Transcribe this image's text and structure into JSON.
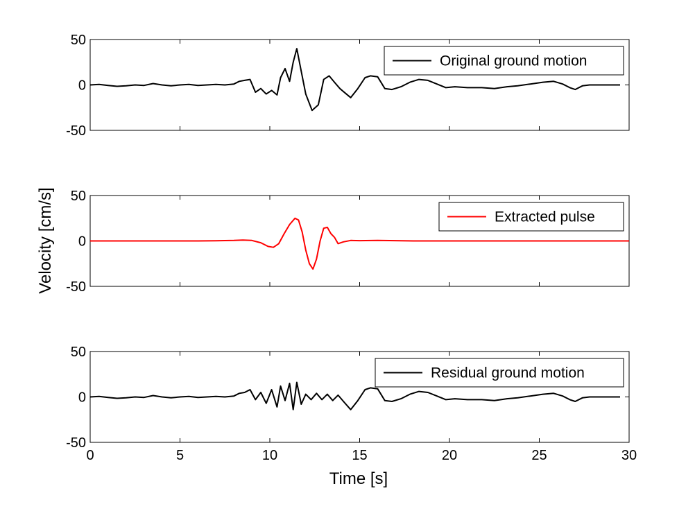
{
  "chart_data": {
    "type": "line",
    "xlabel": "Time [s]",
    "ylabel": "Velocity [cm/s]",
    "xlim": [
      0,
      30
    ],
    "ylim": [
      -50,
      50
    ],
    "xticks": [
      0,
      5,
      10,
      15,
      20,
      25,
      30
    ],
    "yticks": [
      50,
      0,
      -50
    ],
    "grid": false,
    "panels": [
      {
        "legend": "Original ground motion",
        "legend_position": "top-right",
        "color": "#000000",
        "x": [
          0.0,
          0.5,
          1.0,
          1.5,
          2.0,
          2.5,
          3.0,
          3.5,
          4.0,
          4.5,
          5.0,
          5.5,
          6.0,
          6.5,
          7.0,
          7.5,
          8.0,
          8.3,
          8.6,
          8.9,
          9.2,
          9.5,
          9.8,
          10.1,
          10.4,
          10.6,
          10.85,
          11.1,
          11.3,
          11.5,
          11.75,
          12.0,
          12.35,
          12.7,
          13.0,
          13.3,
          13.6,
          13.9,
          14.2,
          14.5,
          14.9,
          15.3,
          15.6,
          16.0,
          16.4,
          16.8,
          17.3,
          17.8,
          18.3,
          18.8,
          19.3,
          19.8,
          20.3,
          21.0,
          21.8,
          22.5,
          23.2,
          23.8,
          24.5,
          25.2,
          25.8,
          26.3,
          26.7,
          27.0,
          27.4,
          27.8,
          28.5,
          29.5
        ],
        "y": [
          0,
          0.5,
          -0.5,
          -1.5,
          -1,
          0,
          -0.5,
          1.5,
          0,
          -1,
          0,
          0.5,
          -0.5,
          0,
          0.5,
          0,
          1,
          4,
          5,
          6,
          -8,
          -4,
          -10,
          -6,
          -11,
          8,
          18,
          4,
          25,
          40,
          15,
          -10,
          -28,
          -22,
          6,
          10,
          3,
          -4,
          -9,
          -14,
          -4,
          8,
          10,
          9,
          -4,
          -5,
          -2,
          3,
          6,
          5,
          1,
          -3,
          -2,
          -3,
          -3,
          -4,
          -2,
          -1,
          1,
          3,
          4,
          1,
          -3,
          -5,
          -1,
          0,
          0,
          0
        ]
      },
      {
        "legend": "Extracted pulse",
        "legend_position": "top-right",
        "color": "#ff0000",
        "x": [
          0.0,
          6.0,
          7.0,
          8.0,
          8.5,
          9.0,
          9.5,
          9.9,
          10.2,
          10.5,
          10.8,
          11.1,
          11.4,
          11.6,
          11.8,
          12.0,
          12.2,
          12.4,
          12.6,
          12.8,
          13.0,
          13.2,
          13.4,
          13.6,
          13.8,
          14.1,
          14.5,
          15.0,
          16.0,
          17.0,
          18.0,
          30.0
        ],
        "y": [
          0,
          0,
          0.2,
          0.5,
          1,
          0.5,
          -2,
          -6,
          -7,
          -3,
          8,
          18,
          25,
          23,
          10,
          -10,
          -25,
          -31,
          -20,
          0,
          14,
          15,
          8,
          4,
          -3,
          -1,
          0.5,
          0.3,
          0.5,
          0.3,
          0,
          0
        ]
      },
      {
        "legend": "Residual ground motion",
        "legend_position": "top-right",
        "color": "#000000",
        "x": [
          0.0,
          0.5,
          1.0,
          1.5,
          2.0,
          2.5,
          3.0,
          3.5,
          4.0,
          4.5,
          5.0,
          5.5,
          6.0,
          6.5,
          7.0,
          7.5,
          8.0,
          8.3,
          8.6,
          8.9,
          9.2,
          9.5,
          9.8,
          10.1,
          10.4,
          10.6,
          10.85,
          11.1,
          11.3,
          11.5,
          11.75,
          12.0,
          12.3,
          12.6,
          12.9,
          13.2,
          13.5,
          13.8,
          14.1,
          14.5,
          14.9,
          15.3,
          15.6,
          16.0,
          16.4,
          16.8,
          17.3,
          17.8,
          18.3,
          18.8,
          19.3,
          19.8,
          20.3,
          21.0,
          21.8,
          22.5,
          23.2,
          23.8,
          24.5,
          25.2,
          25.8,
          26.3,
          26.7,
          27.0,
          27.4,
          27.8,
          28.5,
          29.5
        ],
        "y": [
          0,
          0.5,
          -0.5,
          -1.5,
          -1,
          0,
          -0.5,
          1.5,
          0,
          -1,
          0,
          0.5,
          -0.5,
          0,
          0.5,
          0,
          1,
          4,
          5,
          8,
          -3,
          5,
          -7,
          8,
          -11,
          12,
          -4,
          15,
          -14,
          16,
          -8,
          3,
          -3,
          4,
          -3,
          3,
          -4,
          2,
          -5,
          -14,
          -4,
          8,
          10,
          9,
          -4,
          -5,
          -2,
          3,
          6,
          5,
          1,
          -3,
          -2,
          -3,
          -3,
          -4,
          -2,
          -1,
          1,
          3,
          4,
          1,
          -3,
          -5,
          -1,
          0,
          0,
          0
        ]
      }
    ]
  }
}
